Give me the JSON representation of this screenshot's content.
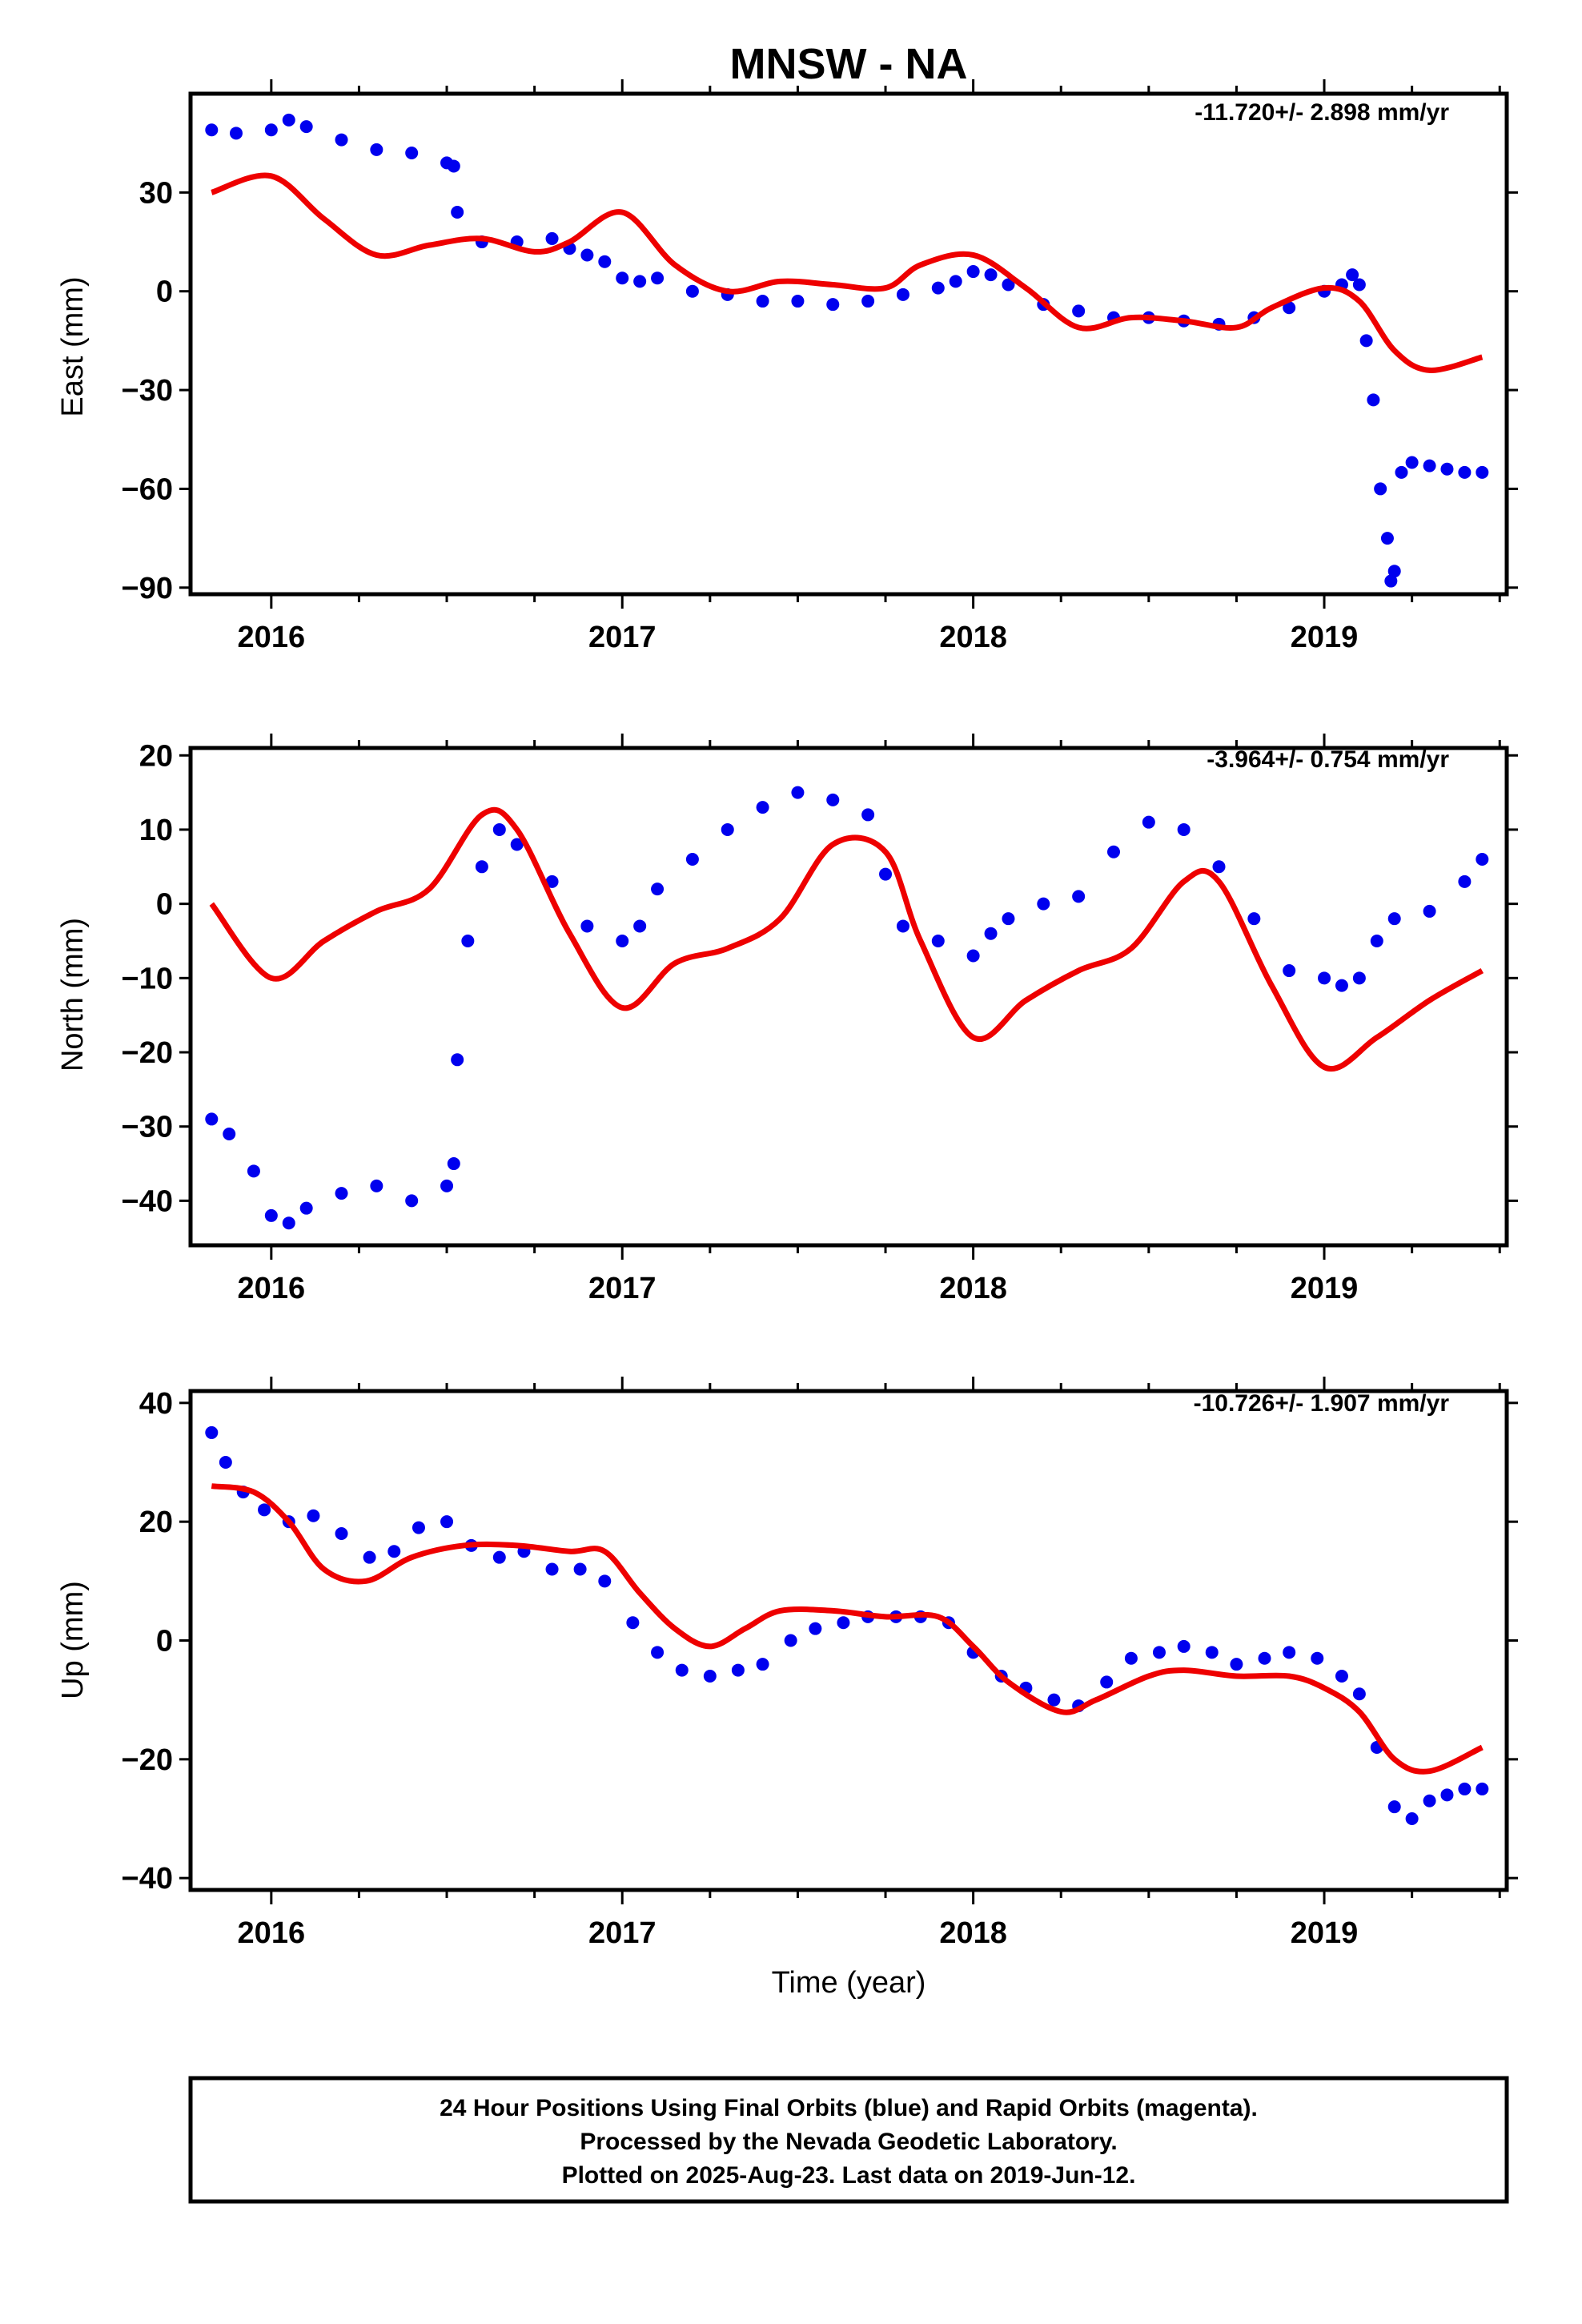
{
  "title": "MNSW - NA",
  "xlabel": "Time (year)",
  "x_ticks": [
    "2016",
    "2017",
    "2018",
    "2019"
  ],
  "colors": {
    "data": "#0000ee",
    "model": "#ee0000",
    "axis": "#000000"
  },
  "caption": {
    "line1": "24 Hour Positions Using Final Orbits (blue) and Rapid Orbits (magenta).",
    "line2": "Processed by the Nevada Geodetic Laboratory.",
    "line3": "Plotted on 2025-Aug-23. Last data on 2019-Jun-12."
  },
  "chart_data": [
    {
      "type": "scatter",
      "component": "east",
      "ylabel": "East (mm)",
      "rate": "-11.720+/- 2.898 mm/yr",
      "xlim": [
        2015.77,
        2019.52
      ],
      "ylim": [
        -92,
        60
      ],
      "y_ticks": [
        -90,
        -60,
        -30,
        0,
        30
      ],
      "y_tick_labels": [
        "−90",
        "−60",
        "−30",
        "0",
        "30"
      ],
      "series": [
        {
          "role": "data",
          "x": [
            2015.83,
            2015.9,
            2016.0,
            2016.05,
            2016.1,
            2016.2,
            2016.3,
            2016.4,
            2016.5,
            2016.52,
            2016.53,
            2016.6,
            2016.7,
            2016.8,
            2016.85,
            2016.9,
            2016.95,
            2017.0,
            2017.05,
            2017.1,
            2017.2,
            2017.3,
            2017.4,
            2017.5,
            2017.6,
            2017.7,
            2017.8,
            2017.9,
            2017.95,
            2018.0,
            2018.05,
            2018.1,
            2018.2,
            2018.3,
            2018.4,
            2018.5,
            2018.6,
            2018.7,
            2018.8,
            2018.9,
            2019.0,
            2019.05,
            2019.08,
            2019.1,
            2019.12,
            2019.14,
            2019.16,
            2019.18,
            2019.19,
            2019.2,
            2019.22,
            2019.25,
            2019.3,
            2019.35,
            2019.4,
            2019.45
          ],
          "y": [
            49,
            48,
            49,
            52,
            50,
            46,
            43,
            42,
            39,
            38,
            24,
            15,
            15,
            16,
            13,
            11,
            9,
            4,
            3,
            4,
            0,
            -1,
            -3,
            -3,
            -4,
            -3,
            -1,
            1,
            3,
            6,
            5,
            2,
            -4,
            -6,
            -8,
            -8,
            -9,
            -10,
            -8,
            -5,
            0,
            2,
            5,
            2,
            -15,
            -33,
            -60,
            -75,
            -88,
            -85,
            -55,
            -52,
            -53,
            -54,
            -55,
            -55
          ]
        },
        {
          "role": "model",
          "x": [
            2015.83,
            2016.0,
            2016.15,
            2016.3,
            2016.45,
            2016.6,
            2016.75,
            2016.85,
            2017.0,
            2017.15,
            2017.3,
            2017.45,
            2017.6,
            2017.75,
            2017.85,
            2018.0,
            2018.15,
            2018.3,
            2018.45,
            2018.6,
            2018.75,
            2018.85,
            2019.0,
            2019.1,
            2019.2,
            2019.3,
            2019.45
          ],
          "y": [
            30,
            35,
            22,
            11,
            14,
            16,
            12,
            15,
            24,
            8,
            0,
            3,
            2,
            1,
            8,
            11,
            1,
            -11,
            -8,
            -9,
            -11,
            -5,
            1,
            -3,
            -18,
            -24,
            -20
          ]
        }
      ]
    },
    {
      "type": "scatter",
      "component": "north",
      "ylabel": "North (mm)",
      "rate": "-3.964+/- 0.754 mm/yr",
      "xlim": [
        2015.77,
        2019.52
      ],
      "ylim": [
        -46,
        21
      ],
      "y_ticks": [
        -40,
        -30,
        -20,
        -10,
        0,
        10,
        20
      ],
      "y_tick_labels": [
        "−40",
        "−30",
        "−20",
        "−10",
        "0",
        "10",
        "20"
      ],
      "series": [
        {
          "role": "data",
          "x": [
            2015.83,
            2015.88,
            2015.95,
            2016.0,
            2016.05,
            2016.1,
            2016.2,
            2016.3,
            2016.4,
            2016.5,
            2016.52,
            2016.53,
            2016.56,
            2016.6,
            2016.65,
            2016.7,
            2016.8,
            2016.9,
            2017.0,
            2017.05,
            2017.1,
            2017.2,
            2017.3,
            2017.4,
            2017.5,
            2017.6,
            2017.7,
            2017.75,
            2017.8,
            2017.9,
            2018.0,
            2018.05,
            2018.1,
            2018.2,
            2018.3,
            2018.4,
            2018.5,
            2018.6,
            2018.7,
            2018.8,
            2018.9,
            2019.0,
            2019.05,
            2019.1,
            2019.15,
            2019.2,
            2019.3,
            2019.4,
            2019.45
          ],
          "y": [
            -29,
            -31,
            -36,
            -42,
            -43,
            -41,
            -39,
            -38,
            -40,
            -38,
            -35,
            -21,
            -5,
            5,
            10,
            8,
            3,
            -3,
            -5,
            -3,
            2,
            6,
            10,
            13,
            15,
            14,
            12,
            4,
            -3,
            -5,
            -7,
            -4,
            -2,
            0,
            1,
            7,
            11,
            10,
            5,
            -2,
            -9,
            -10,
            -11,
            -10,
            -5,
            -2,
            -1,
            3,
            6
          ]
        },
        {
          "role": "model",
          "x": [
            2015.83,
            2016.0,
            2016.15,
            2016.3,
            2016.45,
            2016.6,
            2016.7,
            2016.85,
            2017.0,
            2017.15,
            2017.3,
            2017.45,
            2017.6,
            2017.75,
            2017.85,
            2018.0,
            2018.15,
            2018.3,
            2018.45,
            2018.6,
            2018.7,
            2018.85,
            2019.0,
            2019.15,
            2019.3,
            2019.45
          ],
          "y": [
            0,
            -10,
            -5,
            -1,
            2,
            12,
            10,
            -4,
            -14,
            -8,
            -6,
            -2,
            8,
            7,
            -5,
            -18,
            -13,
            -9,
            -6,
            3,
            3,
            -11,
            -22,
            -18,
            -13,
            -9
          ]
        }
      ]
    },
    {
      "type": "scatter",
      "component": "up",
      "ylabel": "Up (mm)",
      "rate": "-10.726+/- 1.907 mm/yr",
      "xlim": [
        2015.77,
        2019.52
      ],
      "ylim": [
        -42,
        42
      ],
      "y_ticks": [
        -40,
        -20,
        0,
        20,
        40
      ],
      "y_tick_labels": [
        "−40",
        "−20",
        "0",
        "20",
        "40"
      ],
      "series": [
        {
          "role": "data",
          "x": [
            2015.83,
            2015.87,
            2015.92,
            2015.98,
            2016.05,
            2016.12,
            2016.2,
            2016.28,
            2016.35,
            2016.42,
            2016.5,
            2016.57,
            2016.65,
            2016.72,
            2016.8,
            2016.88,
            2016.95,
            2017.03,
            2017.1,
            2017.17,
            2017.25,
            2017.33,
            2017.4,
            2017.48,
            2017.55,
            2017.63,
            2017.7,
            2017.78,
            2017.85,
            2017.93,
            2018.0,
            2018.08,
            2018.15,
            2018.23,
            2018.3,
            2018.38,
            2018.45,
            2018.53,
            2018.6,
            2018.68,
            2018.75,
            2018.83,
            2018.9,
            2018.98,
            2019.05,
            2019.1,
            2019.15,
            2019.2,
            2019.25,
            2019.3,
            2019.35,
            2019.4,
            2019.45
          ],
          "y": [
            35,
            30,
            25,
            22,
            20,
            21,
            18,
            14,
            15,
            19,
            20,
            16,
            14,
            15,
            12,
            12,
            10,
            3,
            -2,
            -5,
            -6,
            -5,
            -4,
            0,
            2,
            3,
            4,
            4,
            4,
            3,
            -2,
            -6,
            -8,
            -10,
            -11,
            -7,
            -3,
            -2,
            -1,
            -2,
            -4,
            -3,
            -2,
            -3,
            -6,
            -9,
            -18,
            -28,
            -30,
            -27,
            -26,
            -25,
            -25
          ]
        },
        {
          "role": "model",
          "x": [
            2015.83,
            2015.95,
            2016.05,
            2016.15,
            2016.27,
            2016.4,
            2016.55,
            2016.7,
            2016.85,
            2016.95,
            2017.05,
            2017.15,
            2017.25,
            2017.35,
            2017.45,
            2017.6,
            2017.75,
            2017.9,
            2018.0,
            2018.1,
            2018.25,
            2018.35,
            2018.5,
            2018.6,
            2018.75,
            2018.9,
            2019.0,
            2019.1,
            2019.2,
            2019.3,
            2019.45
          ],
          "y": [
            26,
            25,
            20,
            12,
            10,
            14,
            16,
            16,
            15,
            15,
            8,
            2,
            -1,
            2,
            5,
            5,
            4,
            4,
            -1,
            -7,
            -12,
            -10,
            -6,
            -5,
            -6,
            -6,
            -8,
            -12,
            -20,
            -22,
            -18
          ]
        }
      ]
    }
  ]
}
